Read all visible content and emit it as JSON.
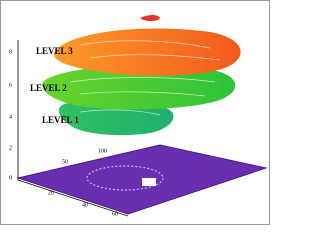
{
  "levels": [
    "LEVEL 3",
    "LEVEL 2",
    "LEVEL 1"
  ],
  "z_ticks": [
    "8",
    "6",
    "4",
    "2",
    "0"
  ],
  "x_ticks": [
    "20",
    "40",
    "60"
  ],
  "y_ticks": [
    "50",
    "100"
  ]
}
